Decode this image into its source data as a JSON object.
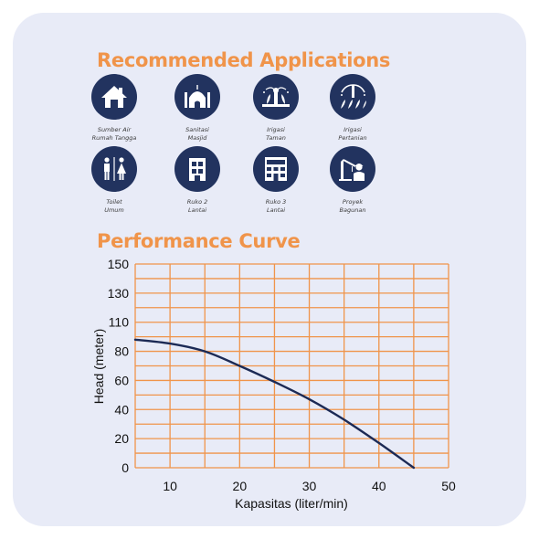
{
  "sections": {
    "applications_title": "Recommended Applications",
    "performance_title": "Performance Curve"
  },
  "applications": [
    {
      "label": "Sumber Air\nRumah Tangga",
      "icon": "house-icon"
    },
    {
      "label": "Sanitasi\nMasjid",
      "icon": "mosque-icon"
    },
    {
      "label": "Irigasi\nTaman",
      "icon": "garden-irrigation-icon"
    },
    {
      "label": "Irigasi\nPertanian",
      "icon": "farm-irrigation-icon"
    },
    {
      "label": "Toilet\nUmum",
      "icon": "toilet-icon"
    },
    {
      "label": "Ruko 2\nLantai",
      "icon": "building-2-floor-icon"
    },
    {
      "label": "Ruko 3\nLantai",
      "icon": "building-3-floor-icon"
    },
    {
      "label": "Proyek\nBagunan",
      "icon": "construction-icon"
    }
  ],
  "colors": {
    "card_background": "#e8ebf7",
    "title_orange": "#f0944a",
    "icon_navy": "#22335f",
    "grid_orange": "#f0944a",
    "curve_navy": "#1c2a55"
  },
  "chart_data": {
    "type": "line",
    "title": "",
    "xlabel": "Kapasitas (liter/min)",
    "ylabel": "Head (meter)",
    "xlim": [
      5,
      50
    ],
    "ylim": [
      0,
      150
    ],
    "x_ticks": [
      10,
      20,
      30,
      40,
      50
    ],
    "y_ticks": [
      0,
      20,
      40,
      60,
      80,
      110,
      130,
      150
    ],
    "grid": true,
    "series": [
      {
        "x": [
          5,
          10,
          15,
          20,
          25,
          30,
          35,
          40,
          45
        ],
        "y": [
          92,
          88,
          80,
          70,
          59,
          47,
          33,
          17,
          0
        ]
      }
    ]
  }
}
